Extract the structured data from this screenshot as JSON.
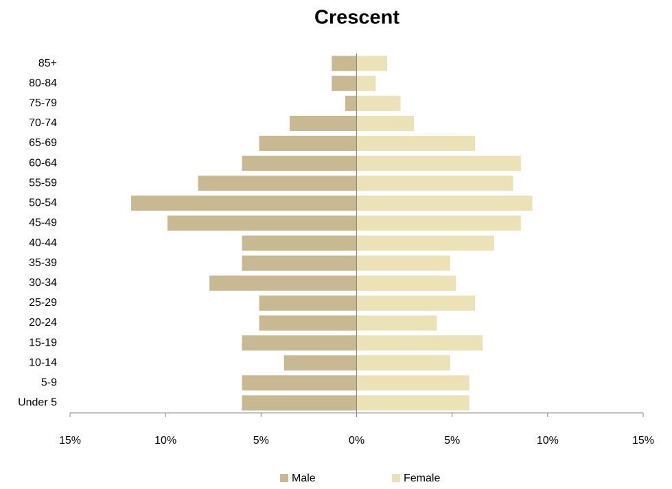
{
  "chart_data": {
    "type": "bar",
    "orientation": "horizontal",
    "title": "Crescent",
    "categories": [
      "85+",
      "80-84",
      "75-79",
      "70-74",
      "65-69",
      "60-64",
      "55-59",
      "50-54",
      "45-49",
      "40-44",
      "35-39",
      "30-34",
      "25-29",
      "20-24",
      "15-19",
      "10-14",
      "5-9",
      "Under 5"
    ],
    "series": [
      {
        "name": "Male",
        "color": "#c8b993",
        "values": [
          -1.3,
          -1.3,
          -0.6,
          -3.5,
          -5.1,
          -6.0,
          -8.3,
          -11.8,
          -9.9,
          -6.0,
          -6.0,
          -7.7,
          -5.1,
          -5.1,
          -6.0,
          -3.8,
          -6.0,
          -6.0
        ]
      },
      {
        "name": "Female",
        "color": "#ebe2b8",
        "values": [
          1.6,
          1.0,
          2.3,
          3.0,
          6.2,
          8.6,
          8.2,
          9.2,
          8.6,
          7.2,
          4.9,
          5.2,
          6.2,
          4.2,
          6.6,
          4.9,
          5.9,
          5.9
        ]
      }
    ],
    "xlim": [
      -15,
      15
    ],
    "xticks": [
      {
        "value": -15,
        "label": "15%"
      },
      {
        "value": -10,
        "label": "10%"
      },
      {
        "value": -5,
        "label": "5%"
      },
      {
        "value": 0,
        "label": "0%"
      },
      {
        "value": 5,
        "label": "5%"
      },
      {
        "value": 10,
        "label": "10%"
      },
      {
        "value": 15,
        "label": "15%"
      }
    ],
    "legend": "bottom"
  }
}
